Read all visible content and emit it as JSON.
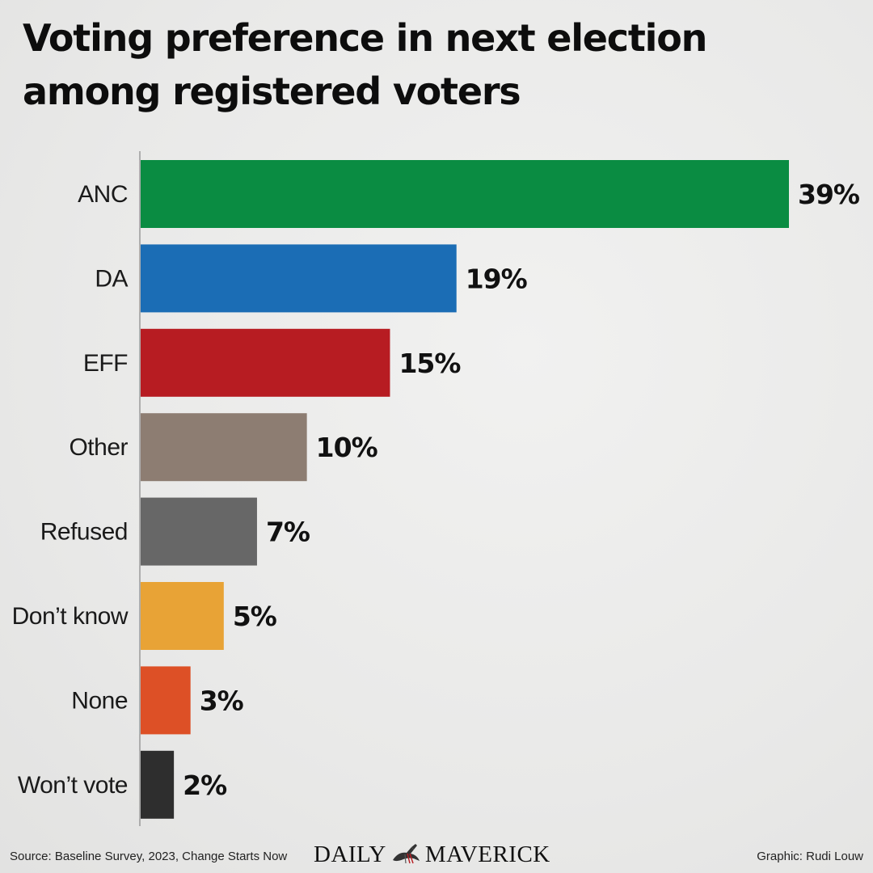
{
  "chart_data": {
    "type": "bar",
    "orientation": "horizontal",
    "title": "Voting preference in next election among registered voters",
    "categories": [
      "ANC",
      "DA",
      "EFF",
      "Other",
      "Refused",
      "Don’t know",
      "None",
      "Won’t vote"
    ],
    "values": [
      39,
      19,
      15,
      10,
      7,
      5,
      3,
      2
    ],
    "value_labels": [
      "39%",
      "19%",
      "15%",
      "10%",
      "7%",
      "5%",
      "3%",
      "2%"
    ],
    "colors": [
      "#0a8c42",
      "#1b6db5",
      "#b71c22",
      "#8d7d72",
      "#676767",
      "#e8a336",
      "#dd5026",
      "#2e2e2e"
    ],
    "xlim": [
      0,
      39
    ],
    "grid": false,
    "legend": "none"
  },
  "footer": {
    "source": "Source: Baseline Survey, 2023, Change Starts Now",
    "credit": "Graphic: Rudi Louw"
  },
  "logo": {
    "left_word": "DAILY",
    "right_word": "MAVERICK"
  }
}
